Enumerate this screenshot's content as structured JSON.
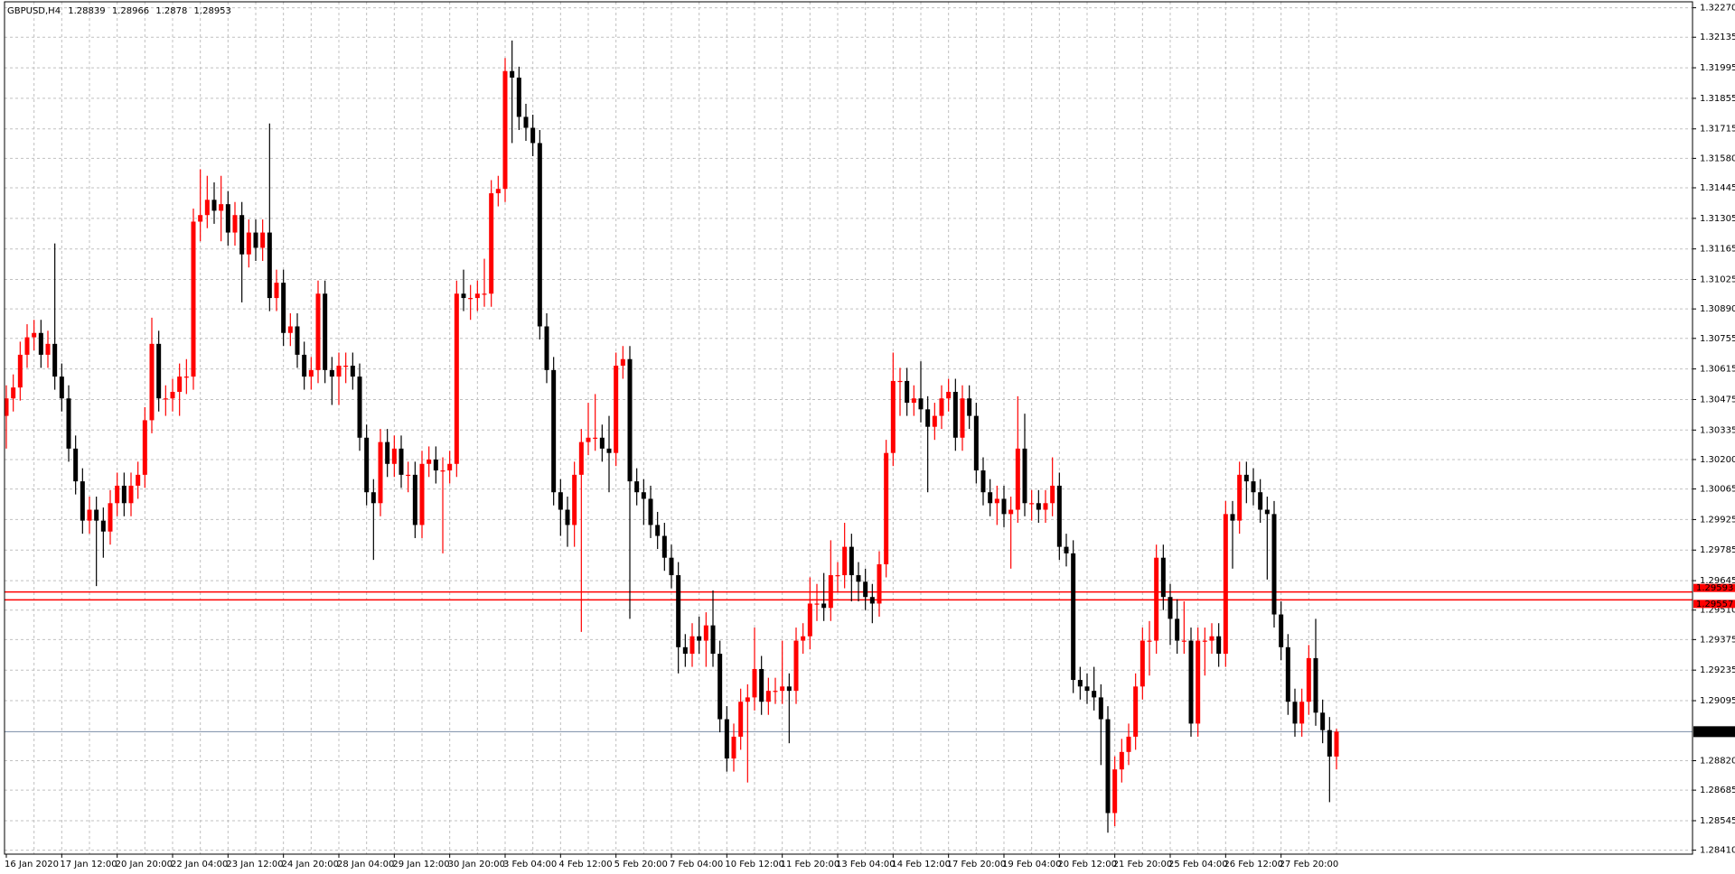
{
  "chart_data": {
    "type": "candlestick",
    "title": "GBPUSD,H4",
    "categories": [
      "16 Jan 2020",
      null,
      null,
      null,
      null,
      null,
      null,
      null,
      "17 Jan 12:00",
      null,
      null,
      null,
      null,
      null,
      null,
      null,
      "20 Jan 20:00",
      null,
      null,
      null,
      null,
      null,
      null,
      null,
      "22 Jan 04:00",
      null,
      null,
      null,
      null,
      null,
      null,
      null,
      "23 Jan 12:00",
      null,
      null,
      null,
      null,
      null,
      null,
      null,
      "24 Jan 20:00",
      null,
      null,
      null,
      null,
      null,
      null,
      null,
      "28 Jan 04:00",
      null,
      null,
      null,
      null,
      null,
      null,
      null,
      "29 Jan 12:00",
      null,
      null,
      null,
      null,
      null,
      null,
      null,
      "30 Jan 20:00",
      null,
      null,
      null,
      null,
      null,
      null,
      null,
      "3 Feb 04:00",
      null,
      null,
      null,
      null,
      null,
      null,
      null,
      "4 Feb 12:00",
      null,
      null,
      null,
      null,
      null,
      null,
      null,
      "5 Feb 20:00",
      null,
      null,
      null,
      null,
      null,
      null,
      null,
      "7 Feb 04:00",
      null,
      null,
      null,
      null,
      null,
      null,
      null,
      "10 Feb 12:00",
      null,
      null,
      null,
      null,
      null,
      null,
      null,
      "11 Feb 20:00",
      null,
      null,
      null,
      null,
      null,
      null,
      null,
      "13 Feb 04:00",
      null,
      null,
      null,
      null,
      null,
      null,
      null,
      "14 Feb 12:00",
      null,
      null,
      null,
      null,
      null,
      null,
      null,
      "17 Feb 20:00",
      null,
      null,
      null,
      null,
      null,
      null,
      null,
      "19 Feb 04:00",
      null,
      null,
      null,
      null,
      null,
      null,
      null,
      "20 Feb 12:00",
      null,
      null,
      null,
      null,
      null,
      null,
      null,
      "21 Feb 20:00",
      null,
      null,
      null,
      null,
      null,
      null,
      null,
      "25 Feb 04:00",
      null,
      null,
      null,
      null,
      null,
      null,
      null,
      "26 Feb 12:00",
      null,
      null,
      null,
      null,
      null,
      null,
      null,
      "27 Feb 20:00",
      null,
      null,
      null,
      null,
      null,
      null,
      null,
      null
    ],
    "open": [
      1.304,
      1.3048,
      1.3053,
      1.3068,
      1.3076,
      1.3078,
      1.3068,
      1.3073,
      1.3058,
      1.3048,
      1.3025,
      1.301,
      1.2992,
      1.2997,
      1.2992,
      1.2987,
      1.3,
      1.3008,
      1.3,
      1.3008,
      1.3013,
      1.3038,
      1.3073,
      1.3048,
      1.3048,
      1.3051,
      1.3058,
      1.3058,
      1.3129,
      1.3132,
      1.3139,
      1.3134,
      1.3137,
      1.3124,
      1.3132,
      1.3114,
      1.3124,
      1.3117,
      1.3124,
      1.3094,
      1.3101,
      1.3078,
      1.3081,
      1.3068,
      1.3058,
      1.3061,
      1.3096,
      1.3061,
      1.3058,
      1.3063,
      1.3063,
      1.3058,
      1.303,
      1.3005,
      1.3,
      1.3028,
      1.3018,
      1.3025,
      1.3013,
      1.3013,
      1.299,
      1.3018,
      1.302,
      1.3015,
      1.3015,
      1.3018,
      1.3096,
      1.3094,
      1.3094,
      1.3096,
      1.3096,
      1.3142,
      1.3144,
      1.3198,
      1.3195,
      1.3177,
      1.3172,
      1.3165,
      1.3081,
      1.3061,
      1.3005,
      1.2997,
      1.299,
      1.3013,
      1.3028,
      1.303,
      1.303,
      1.3025,
      1.3023,
      1.3063,
      1.3066,
      1.301,
      1.3005,
      1.3002,
      1.299,
      1.2985,
      1.2975,
      1.2967,
      1.2934,
      1.2931,
      1.2939,
      1.2937,
      1.2944,
      1.2931,
      1.2901,
      1.2883,
      1.2893,
      1.2909,
      1.2911,
      1.2924,
      1.2909,
      1.2914,
      1.2914,
      1.2916,
      1.2914,
      1.2937,
      1.2939,
      1.2954,
      1.2954,
      1.2952,
      1.2967,
      1.2967,
      1.298,
      1.2967,
      1.2964,
      1.2957,
      1.2954,
      1.2972,
      1.3023,
      1.3056,
      1.3056,
      1.3046,
      1.3048,
      1.3043,
      1.3035,
      1.304,
      1.3048,
      1.3051,
      1.303,
      1.3048,
      1.304,
      1.3015,
      1.3005,
      1.3,
      1.3002,
      1.2995,
      1.2997,
      1.3025,
      1.3,
      1.3,
      1.2997,
      1.3,
      1.3008,
      1.298,
      1.2977,
      1.2919,
      1.2916,
      1.2914,
      1.2911,
      1.2901,
      1.2858,
      1.2878,
      1.2886,
      1.2893,
      1.2916,
      1.2937,
      1.2937,
      1.2975,
      1.2957,
      1.2947,
      1.2937,
      1.2937,
      1.2899,
      1.2937,
      1.2937,
      1.2939,
      1.2931,
      1.2995,
      1.2992,
      1.3013,
      1.301,
      1.3005,
      1.2997,
      1.2995,
      1.2949,
      1.2934,
      1.2909,
      1.2899,
      1.2909,
      1.2929,
      1.2904,
      1.2896,
      1.28839
    ],
    "high": [
      1.3054,
      1.3059,
      1.3074,
      1.3082,
      1.3084,
      1.3084,
      1.3079,
      1.3119,
      1.3064,
      1.3054,
      1.3031,
      1.3016,
      1.3003,
      1.3003,
      1.2998,
      1.3006,
      1.3014,
      1.3014,
      1.3014,
      1.3019,
      1.3044,
      1.3085,
      1.3079,
      1.3054,
      1.3057,
      1.3064,
      1.3066,
      1.3135,
      1.3153,
      1.315,
      1.3147,
      1.315,
      1.3143,
      1.3138,
      1.3138,
      1.313,
      1.313,
      1.313,
      1.3174,
      1.3107,
      1.3107,
      1.3087,
      1.3087,
      1.3074,
      1.3067,
      1.3102,
      1.3102,
      1.3067,
      1.3069,
      1.3069,
      1.3069,
      1.3064,
      1.3036,
      1.3011,
      1.3034,
      1.3034,
      1.3031,
      1.3031,
      1.3019,
      1.3019,
      1.3024,
      1.3026,
      1.3026,
      1.3021,
      1.3024,
      1.3102,
      1.3107,
      1.31,
      1.3102,
      1.3112,
      1.3148,
      1.315,
      1.3204,
      1.3212,
      1.32,
      1.3183,
      1.3178,
      1.3171,
      1.3087,
      1.3067,
      1.3011,
      1.3003,
      1.3019,
      1.3034,
      1.3046,
      1.305,
      1.3036,
      1.304,
      1.3069,
      1.3072,
      1.3072,
      1.3016,
      1.3011,
      1.3008,
      1.2996,
      1.2991,
      1.2981,
      1.2973,
      1.294,
      1.2945,
      1.2948,
      1.295,
      1.296,
      1.2937,
      1.2907,
      1.2899,
      1.2915,
      1.2917,
      1.2943,
      1.293,
      1.292,
      1.292,
      1.2937,
      1.2922,
      1.2943,
      1.2945,
      1.2966,
      1.2963,
      1.2968,
      1.2983,
      1.2973,
      1.2991,
      1.2986,
      1.2973,
      1.297,
      1.2963,
      1.2978,
      1.3029,
      1.3069,
      1.3062,
      1.3062,
      1.3054,
      1.3065,
      1.3049,
      1.3046,
      1.3054,
      1.3057,
      1.3057,
      1.3054,
      1.3054,
      1.3046,
      1.3021,
      1.3011,
      1.3008,
      1.3008,
      1.3003,
      1.3049,
      1.3041,
      1.3006,
      1.3006,
      1.3006,
      1.3021,
      1.3014,
      1.2986,
      1.2983,
      1.2925,
      1.2922,
      1.2925,
      1.2917,
      1.2907,
      1.2884,
      1.2892,
      1.2899,
      1.2922,
      1.2943,
      1.2946,
      1.2981,
      1.2981,
      1.2963,
      1.2956,
      1.2955,
      1.2943,
      1.2943,
      1.2943,
      1.2945,
      1.2945,
      1.3001,
      1.3001,
      1.3019,
      1.3019,
      1.3016,
      1.3011,
      1.3003,
      1.3001,
      1.2955,
      1.294,
      1.2915,
      1.2915,
      1.2935,
      1.2947,
      1.291,
      1.2902,
      1.28966
    ],
    "low": [
      1.3025,
      1.3042,
      1.3047,
      1.3062,
      1.307,
      1.3062,
      1.3062,
      1.3052,
      1.3042,
      1.3019,
      1.3004,
      1.2986,
      1.2986,
      1.2962,
      1.2975,
      1.2981,
      1.2994,
      1.2994,
      1.2994,
      1.3002,
      1.3007,
      1.3032,
      1.3042,
      1.304,
      1.3042,
      1.304,
      1.305,
      1.3052,
      1.312,
      1.3126,
      1.3128,
      1.312,
      1.3118,
      1.3118,
      1.3092,
      1.3108,
      1.3111,
      1.3111,
      1.3088,
      1.3088,
      1.3072,
      1.3072,
      1.3062,
      1.3052,
      1.3052,
      1.3055,
      1.3055,
      1.3045,
      1.3045,
      1.3055,
      1.3052,
      1.3024,
      1.2999,
      1.2974,
      1.2994,
      1.3012,
      1.3012,
      1.3007,
      1.3005,
      1.2984,
      1.2984,
      1.3012,
      1.3009,
      1.2977,
      1.3009,
      1.3012,
      1.3088,
      1.3084,
      1.3088,
      1.309,
      1.309,
      1.3136,
      1.3138,
      1.3165,
      1.3171,
      1.3166,
      1.3159,
      1.3075,
      1.3055,
      1.2999,
      1.2985,
      1.298,
      1.298,
      1.2941,
      1.3022,
      1.3024,
      1.3019,
      1.3005,
      1.3017,
      1.3057,
      1.2947,
      1.2999,
      1.299,
      1.2984,
      1.2979,
      1.2969,
      1.2961,
      1.2922,
      1.2925,
      1.2925,
      1.2931,
      1.2925,
      1.2925,
      1.2895,
      1.2877,
      1.2877,
      1.2887,
      1.2872,
      1.2905,
      1.2903,
      1.2903,
      1.2908,
      1.2908,
      1.289,
      1.2908,
      1.2931,
      1.2933,
      1.2946,
      1.2946,
      1.2946,
      1.2959,
      1.2961,
      1.2955,
      1.2955,
      1.2951,
      1.2945,
      1.2948,
      1.2966,
      1.3017,
      1.304,
      1.304,
      1.304,
      1.3037,
      1.3005,
      1.3029,
      1.3034,
      1.3042,
      1.3024,
      1.3024,
      1.3034,
      1.3009,
      1.2999,
      1.2994,
      1.299,
      1.2989,
      1.297,
      1.2991,
      1.2994,
      1.2992,
      1.2991,
      1.2991,
      1.2994,
      1.2974,
      1.2971,
      1.2913,
      1.291,
      1.2908,
      1.2905,
      1.288,
      1.2849,
      1.2852,
      1.2872,
      1.288,
      1.2887,
      1.291,
      1.2921,
      1.2931,
      1.2951,
      1.2935,
      1.2931,
      1.2931,
      1.2893,
      1.2893,
      1.2921,
      1.2931,
      1.2925,
      1.2925,
      1.297,
      1.2986,
      1.3,
      1.2999,
      1.2991,
      1.2965,
      1.2943,
      1.2928,
      1.2903,
      1.2893,
      1.2893,
      1.2903,
      1.2898,
      1.289,
      1.2863,
      1.2878
    ],
    "close": [
      1.3048,
      1.3053,
      1.3068,
      1.3076,
      1.3078,
      1.3068,
      1.3073,
      1.3058,
      1.3048,
      1.3025,
      1.301,
      1.2992,
      1.2997,
      1.2992,
      1.2987,
      1.3,
      1.3008,
      1.3,
      1.3008,
      1.3013,
      1.3038,
      1.3073,
      1.3048,
      1.3048,
      1.3051,
      1.3058,
      1.3058,
      1.3129,
      1.3132,
      1.3139,
      1.3134,
      1.3137,
      1.3124,
      1.3132,
      1.3114,
      1.3124,
      1.3117,
      1.3124,
      1.3094,
      1.3101,
      1.3078,
      1.3081,
      1.3068,
      1.3058,
      1.3061,
      1.3096,
      1.3061,
      1.3058,
      1.3063,
      1.3063,
      1.3058,
      1.303,
      1.3005,
      1.3,
      1.3028,
      1.3018,
      1.3025,
      1.3013,
      1.3013,
      1.299,
      1.3018,
      1.302,
      1.3015,
      1.3015,
      1.3018,
      1.3096,
      1.3094,
      1.3094,
      1.3096,
      1.3096,
      1.3142,
      1.3144,
      1.3198,
      1.3195,
      1.3177,
      1.3172,
      1.3165,
      1.3081,
      1.3061,
      1.3005,
      1.2997,
      1.299,
      1.3013,
      1.3028,
      1.303,
      1.303,
      1.3025,
      1.3023,
      1.3063,
      1.3066,
      1.301,
      1.3005,
      1.3002,
      1.299,
      1.2985,
      1.2975,
      1.2967,
      1.2934,
      1.2931,
      1.2939,
      1.2937,
      1.2944,
      1.2931,
      1.2901,
      1.2883,
      1.2893,
      1.2909,
      1.2911,
      1.2924,
      1.2909,
      1.2914,
      1.2914,
      1.2916,
      1.2914,
      1.2937,
      1.2939,
      1.2954,
      1.2954,
      1.2952,
      1.2967,
      1.2967,
      1.298,
      1.2967,
      1.2964,
      1.2957,
      1.2954,
      1.2972,
      1.3023,
      1.3056,
      1.3056,
      1.3046,
      1.3048,
      1.3043,
      1.3035,
      1.304,
      1.3048,
      1.3051,
      1.303,
      1.3048,
      1.304,
      1.3015,
      1.3005,
      1.3,
      1.3002,
      1.2995,
      1.2997,
      1.3025,
      1.3,
      1.3,
      1.2997,
      1.3,
      1.3008,
      1.298,
      1.2977,
      1.2919,
      1.2916,
      1.2914,
      1.2911,
      1.2901,
      1.2858,
      1.2878,
      1.2886,
      1.2893,
      1.2916,
      1.2937,
      1.2937,
      1.2975,
      1.2957,
      1.2947,
      1.2937,
      1.2937,
      1.2899,
      1.2937,
      1.2937,
      1.2939,
      1.2931,
      1.2995,
      1.2992,
      1.3013,
      1.301,
      1.3005,
      1.2997,
      1.2995,
      1.2949,
      1.2934,
      1.2909,
      1.2899,
      1.2909,
      1.2929,
      1.2904,
      1.2896,
      1.28839,
      1.28953
    ],
    "up_color": "#ff0000",
    "down_color": "#000000",
    "ylim": [
      1.2841,
      1.3227
    ],
    "yticks": [
      {
        "value": 1.3227,
        "label": "1.32270"
      },
      1.32135,
      1.31995,
      1.31855,
      1.31715,
      {
        "value": 1.3158,
        "label": "1.31580"
      },
      1.31445,
      1.31305,
      1.31165,
      1.31025,
      {
        "value": 1.3089,
        "label": "1.30890"
      },
      1.30755,
      1.30615,
      1.30475,
      1.30335,
      {
        "value": 1.302,
        "label": "1.30200"
      },
      1.30065,
      1.29925,
      1.29785,
      1.29645,
      {
        "value": 1.2951,
        "label": "1.29510"
      },
      1.29375,
      1.29235,
      1.29095,
      {
        "value": 1.2882,
        "label": "1.28820"
      },
      1.28685,
      1.28545,
      {
        "value": 1.2841,
        "label": "1.28410"
      }
    ],
    "grid": true,
    "hlines": [
      {
        "value": 1.29593,
        "color": "#ff0000"
      },
      {
        "value": 1.29557,
        "color": "#ff0000"
      }
    ],
    "bid_line_color": "#7a8ca6"
  }
}
